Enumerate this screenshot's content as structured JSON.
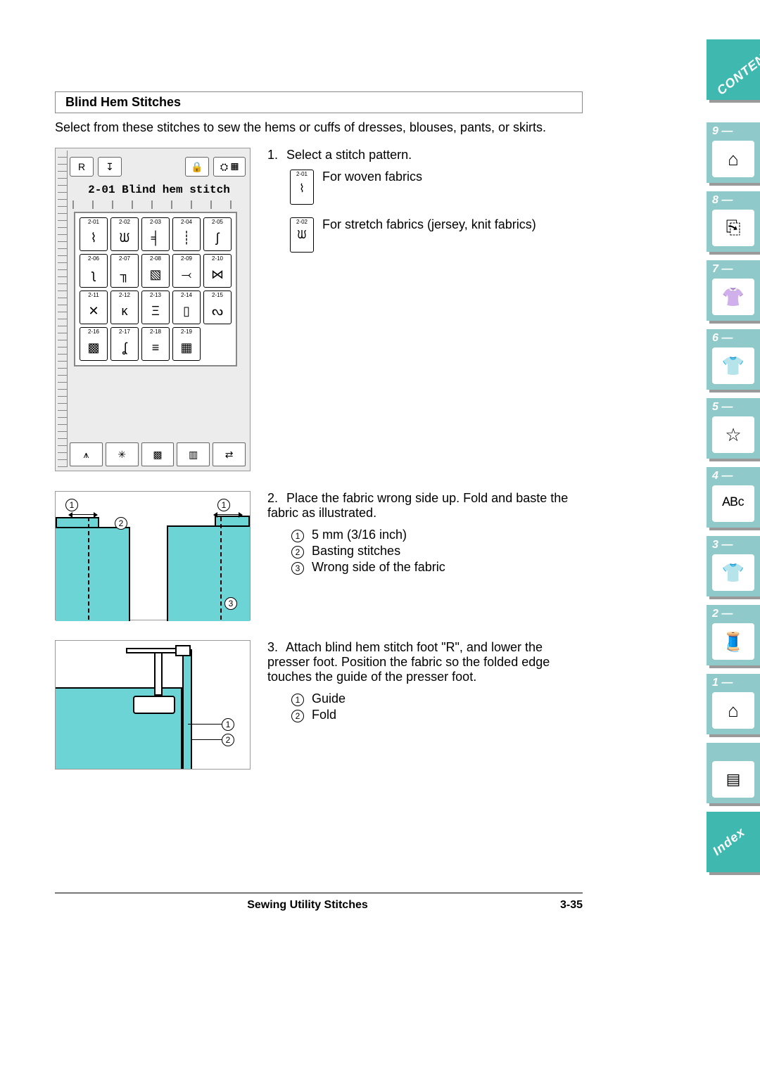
{
  "title": "Blind Hem Stitches",
  "intro": "Select from these stitches to sew the hems or cuffs of dresses, blouses, pants, or skirts.",
  "screen": {
    "name_line": "2-01 Blind hem stitch",
    "stitches": [
      {
        "num": "2-01",
        "glyph": "⌇"
      },
      {
        "num": "2-02",
        "glyph": "ᙎ"
      },
      {
        "num": "2-03",
        "glyph": "╡"
      },
      {
        "num": "2-04",
        "glyph": "┊"
      },
      {
        "num": "2-05",
        "glyph": "ʃ"
      },
      {
        "num": "2-06",
        "glyph": "ʅ"
      },
      {
        "num": "2-07",
        "glyph": "╖"
      },
      {
        "num": "2-08",
        "glyph": "▧"
      },
      {
        "num": "2-09",
        "glyph": "⤙"
      },
      {
        "num": "2-10",
        "glyph": "⋈"
      },
      {
        "num": "2-11",
        "glyph": "✕"
      },
      {
        "num": "2-12",
        "glyph": "κ"
      },
      {
        "num": "2-13",
        "glyph": "Ξ"
      },
      {
        "num": "2-14",
        "glyph": "▯"
      },
      {
        "num": "2-15",
        "glyph": "ᔓ"
      },
      {
        "num": "2-16",
        "glyph": "▩"
      },
      {
        "num": "2-17",
        "glyph": "ʆ"
      },
      {
        "num": "2-18",
        "glyph": "≡"
      },
      {
        "num": "2-19",
        "glyph": "▦"
      }
    ],
    "bottom_icons": [
      "⩚",
      "✳",
      "▩",
      "▥",
      "⇄"
    ]
  },
  "step1": {
    "text": "Select a stitch pattern.",
    "opt1": {
      "num": "2-01",
      "glyph": "⌇",
      "desc": "For woven fabrics"
    },
    "opt2": {
      "num": "2-02",
      "glyph": "ᙎ",
      "desc": "For stretch fabrics (jersey, knit fabrics)"
    }
  },
  "step2": {
    "text": "Place the fabric wrong side up. Fold and baste the fabric as illustrated.",
    "items": [
      "5 mm (3/16 inch)",
      "Basting stitches",
      "Wrong side of the fabric"
    ]
  },
  "step3": {
    "text": "Attach blind hem stitch foot \"R\", and lower the presser foot. Position the fabric so the folded edge touches the guide of the presser foot.",
    "items": [
      "Guide",
      "Fold"
    ]
  },
  "footer": {
    "center": "Sewing Utility Stitches",
    "page": "3-35"
  },
  "tabs": {
    "contents": "CONTENTS",
    "list": [
      {
        "num": "1 —",
        "icon": "⌂"
      },
      {
        "num": "2 —",
        "icon": "🧵"
      },
      {
        "num": "3 —",
        "icon": "👕"
      },
      {
        "num": "4 —",
        "icon": "ᴬᴮᶜ"
      },
      {
        "num": "5 —",
        "icon": "☆"
      },
      {
        "num": "6 —",
        "icon": "👕"
      },
      {
        "num": "7 —",
        "icon": "👚"
      },
      {
        "num": "8 —",
        "icon": "⎘"
      },
      {
        "num": "9 —",
        "icon": "⌂"
      }
    ],
    "glossary_icon": "▤",
    "index": "Index"
  },
  "colors": {
    "fabric": "#6cd4d4",
    "tab_bg": "#8fc9c9",
    "tab_accent": "#3fb8b0",
    "panel_bg": "#ececec"
  }
}
